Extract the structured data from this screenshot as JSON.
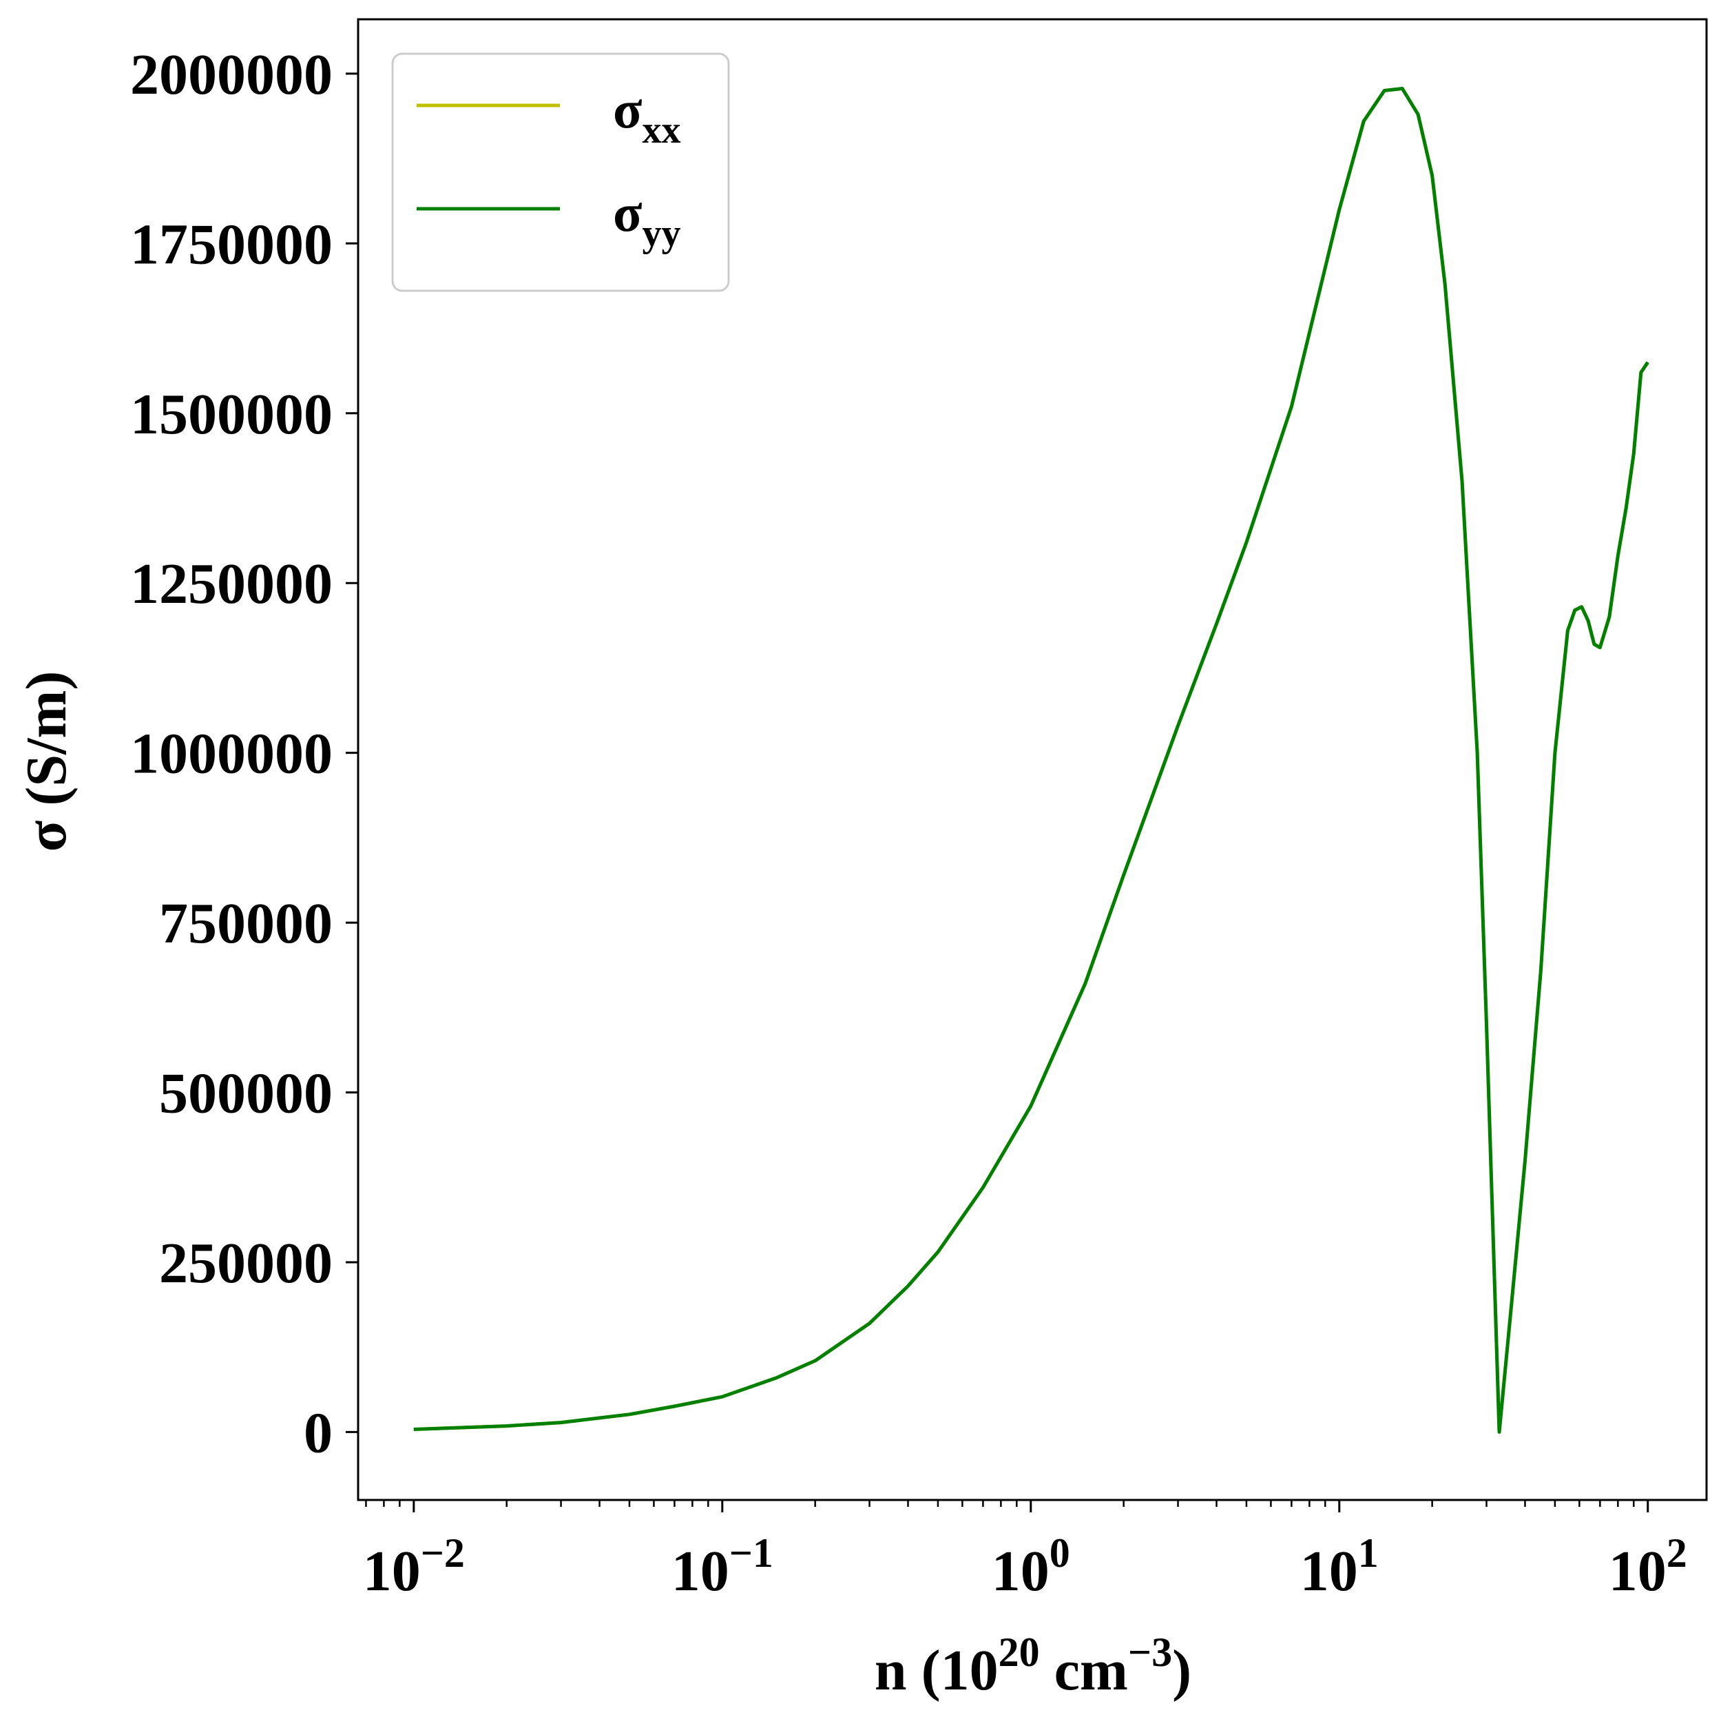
{
  "colors": {
    "sigma_xx": "#bfbf00",
    "sigma_yy": "#008000",
    "axes": "#000000",
    "legend_border": "#cccccc"
  },
  "legend": {
    "placement": "top-left",
    "entries": [
      {
        "base": "σ",
        "sub": "xx",
        "color_key": "sigma_xx"
      },
      {
        "base": "σ",
        "sub": "yy",
        "color_key": "sigma_yy"
      }
    ]
  },
  "chart_data": {
    "type": "line",
    "title": "",
    "xlabel": {
      "base": "n (10",
      "sup1": "20",
      "mid": " cm",
      "sup2": "−3",
      "end": ")"
    },
    "ylabel": "σ (S/m)",
    "xscale": "log",
    "xlim": [
      0.0066,
      155
    ],
    "ylim": [
      -100000,
      2080000
    ],
    "grid": false,
    "xticks": [
      {
        "value": 0.01,
        "base": "10",
        "exp": "−2"
      },
      {
        "value": 0.1,
        "base": "10",
        "exp": "−1"
      },
      {
        "value": 1,
        "base": "10",
        "exp": "0"
      },
      {
        "value": 10,
        "base": "10",
        "exp": "1"
      },
      {
        "value": 100,
        "base": "10",
        "exp": "2"
      }
    ],
    "yticks": [
      {
        "value": 0,
        "label": "0"
      },
      {
        "value": 250000,
        "label": "250000"
      },
      {
        "value": 500000,
        "label": "500000"
      },
      {
        "value": 750000,
        "label": "750000"
      },
      {
        "value": 1000000,
        "label": "1000000"
      },
      {
        "value": 1250000,
        "label": "1250000"
      },
      {
        "value": 1500000,
        "label": "1500000"
      },
      {
        "value": 1750000,
        "label": "1750000"
      },
      {
        "value": 2000000,
        "label": "2000000"
      }
    ],
    "series": [
      {
        "name": "σxx",
        "color_key": "sigma_xx",
        "x": [
          0.01,
          0.02,
          0.03,
          0.05,
          0.07,
          0.1,
          0.15,
          0.2,
          0.3,
          0.4,
          0.5,
          0.7,
          1.0,
          1.5,
          2.0,
          3.0,
          4.0,
          5.0,
          7.0,
          10.0,
          12.0,
          14.0,
          16.0,
          18.0,
          20.0,
          22.0,
          25.0,
          28.0,
          30.0,
          33.0,
          36.0,
          40.0,
          45.0,
          50.0,
          55.0,
          58.0,
          61.0,
          64.0,
          67.0,
          70.0,
          75.0,
          80.0,
          85.0,
          90.0,
          95.0,
          100.0
        ],
        "values": [
          4000,
          9000,
          14000,
          26000,
          38000,
          52000,
          80000,
          105000,
          160000,
          215000,
          265000,
          360000,
          480000,
          660000,
          820000,
          1040000,
          1190000,
          1310000,
          1510000,
          1800000,
          1930000,
          1975000,
          1978000,
          1940000,
          1850000,
          1690000,
          1400000,
          1000000,
          600000,
          0,
          180000,
          400000,
          680000,
          1000000,
          1180000,
          1210000,
          1215000,
          1195000,
          1160000,
          1155000,
          1200000,
          1290000,
          1360000,
          1440000,
          1560000,
          1575000
        ]
      },
      {
        "name": "σyy",
        "color_key": "sigma_yy",
        "x": [
          0.01,
          0.02,
          0.03,
          0.05,
          0.07,
          0.1,
          0.15,
          0.2,
          0.3,
          0.4,
          0.5,
          0.7,
          1.0,
          1.5,
          2.0,
          3.0,
          4.0,
          5.0,
          7.0,
          10.0,
          12.0,
          14.0,
          16.0,
          18.0,
          20.0,
          22.0,
          25.0,
          28.0,
          30.0,
          33.0,
          36.0,
          40.0,
          45.0,
          50.0,
          55.0,
          58.0,
          61.0,
          64.0,
          67.0,
          70.0,
          75.0,
          80.0,
          85.0,
          90.0,
          95.0,
          100.0
        ],
        "values": [
          4000,
          9000,
          14000,
          26000,
          38000,
          52000,
          80000,
          105000,
          160000,
          215000,
          265000,
          360000,
          480000,
          660000,
          820000,
          1040000,
          1190000,
          1310000,
          1510000,
          1800000,
          1930000,
          1975000,
          1978000,
          1940000,
          1850000,
          1690000,
          1400000,
          1000000,
          600000,
          0,
          180000,
          400000,
          680000,
          1000000,
          1180000,
          1210000,
          1215000,
          1195000,
          1160000,
          1155000,
          1200000,
          1290000,
          1360000,
          1440000,
          1560000,
          1575000
        ]
      }
    ]
  }
}
